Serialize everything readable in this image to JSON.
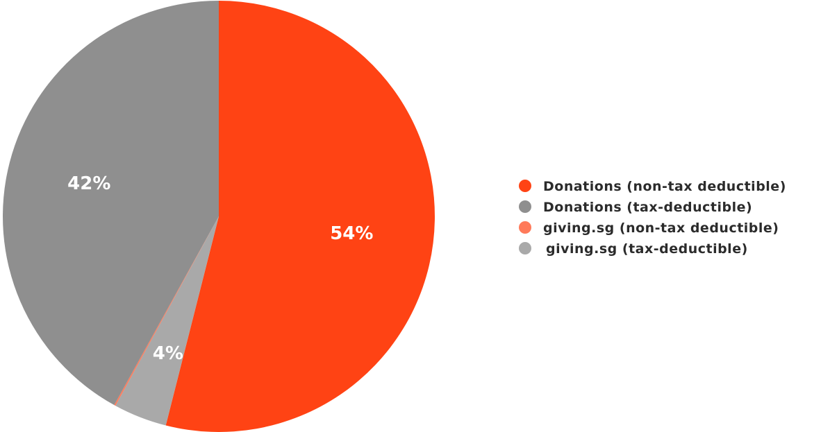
{
  "chart_data": {
    "type": "pie",
    "title": "",
    "legend_position": "right",
    "slices": [
      {
        "label": "Donations (non-tax deductible)",
        "value": 54,
        "display": "54%",
        "color": "#ff4314"
      },
      {
        "label": "giving.sg (tax-deductible)",
        "value": 4,
        "display": "4%",
        "color": "#a9a9a9"
      },
      {
        "label": "giving.sg (non-tax deductible)",
        "value": 0.1,
        "display": "",
        "color": "#ff7a5a"
      },
      {
        "label": "Donations (tax-deductible)",
        "value": 42,
        "display": "42%",
        "color": "#8f8f8f"
      }
    ],
    "legend": [
      {
        "label": "Donations (non-tax deductible)",
        "color": "#ff4314"
      },
      {
        "label": "Donations (tax-deductible)",
        "color": "#8f8f8f"
      },
      {
        "label": "giving.sg (non-tax deductible)",
        "color": "#ff7a5a"
      },
      {
        "label": "giving.sg (tax-deductible)",
        "color": "#a9a9a9"
      }
    ]
  }
}
